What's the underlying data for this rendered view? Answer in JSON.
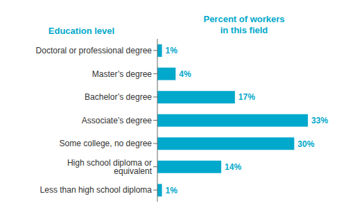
{
  "chart_data": {
    "type": "bar",
    "orientation": "horizontal",
    "y_label": "Education level",
    "x_label": "Percent of workers\nin this field",
    "categories": [
      "Doctoral or professional degree",
      "Master’s degree",
      "Bachelor’s degree",
      "Associate’s degree",
      "Some college, no degree",
      "High school diploma or equivalent",
      "Less than high school diploma"
    ],
    "values": [
      1,
      4,
      17,
      33,
      30,
      14,
      1
    ],
    "value_labels": [
      "1%",
      "4%",
      "17%",
      "33%",
      "30%",
      "14%",
      "1%"
    ],
    "data_labels": true,
    "color": "#00a8cc",
    "xlim": [
      0,
      38
    ],
    "tick_labels": "y",
    "grid": false
  }
}
